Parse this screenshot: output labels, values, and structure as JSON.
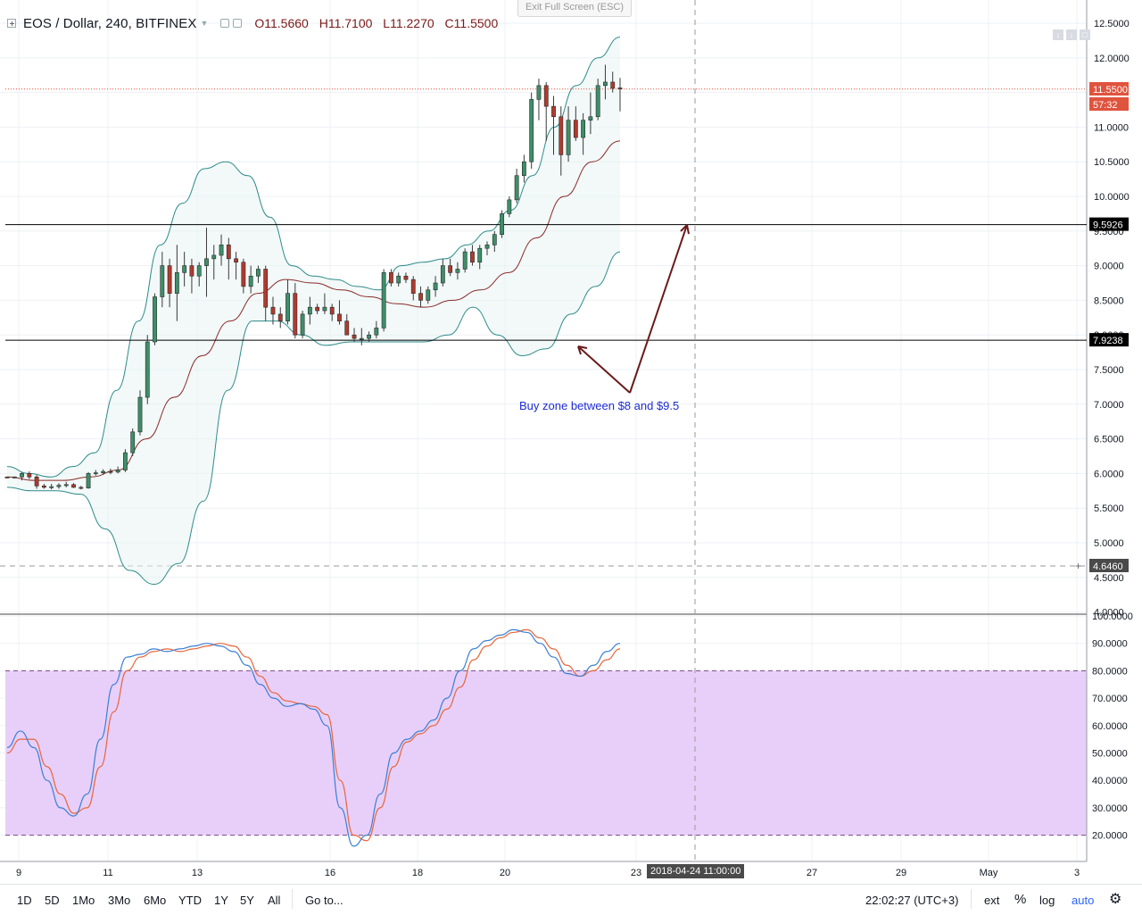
{
  "exit_fullscreen_label": "Exit Full Screen (ESC)",
  "header": {
    "symbol": "EOS / Dollar, 240, BITFINEX",
    "open": "O11.5660",
    "high": "H11.7100",
    "low": "L11.2270",
    "close": "C11.5500"
  },
  "annotation": "Buy zone between $8 and $9.5",
  "price_axis_ticks": [
    "12.5000",
    "12.0000",
    "11.0000",
    "10.5000",
    "10.0000",
    "9.5000",
    "9.0000",
    "8.5000",
    "8.0000",
    "7.5000",
    "7.0000",
    "6.5000",
    "6.0000",
    "5.5000",
    "5.0000",
    "4.5000",
    "4.0000"
  ],
  "stoch_axis_ticks": [
    "100.0000",
    "90.0000",
    "80.0000",
    "70.0000",
    "60.0000",
    "50.0000",
    "40.0000",
    "30.0000",
    "20.0000"
  ],
  "price_labels": {
    "last_price": "11.5500",
    "countdown": "57:32",
    "resistance": "9.5926",
    "support": "7.9238",
    "crosshair": "4.6460"
  },
  "time_axis_ticks": [
    "9",
    "11",
    "13",
    "16",
    "18",
    "20",
    "23",
    "27",
    "29",
    "May",
    "3"
  ],
  "date_badge": "2018-04-24 11:00:00",
  "timeframes": [
    "1D",
    "5D",
    "1Mo",
    "3Mo",
    "6Mo",
    "YTD",
    "1Y",
    "5Y",
    "All"
  ],
  "goto_label": "Go to...",
  "clock": "22:02:27 (UTC+3)",
  "bottom_right": {
    "ext": "ext",
    "percent": "%",
    "log": "log",
    "auto": "auto"
  },
  "colors": {
    "up_candle": "#3d8f6a",
    "down_candle": "#b03a2e",
    "bollinger_band": "#2e8b8b",
    "bollinger_mid": "#8b2a2a",
    "stoch_k": "#3a7fd5",
    "stoch_d": "#e8653a",
    "stoch_zone": "#e6ccfa",
    "last_price_bg": "#e0533d",
    "annotation": "#1d2bd6",
    "arrow": "#6a1a1a"
  },
  "chart_data": {
    "type": "candlestick",
    "title": "EOS / Dollar, 240, BITFINEX",
    "price_range": [
      4.0,
      12.6
    ],
    "candles": [
      [
        5.95,
        5.95,
        5.94,
        5.94
      ],
      [
        5.94,
        5.96,
        5.93,
        5.95
      ],
      [
        5.95,
        6.02,
        5.9,
        6.0
      ],
      [
        6.0,
        6.03,
        5.92,
        5.95
      ],
      [
        5.95,
        5.98,
        5.78,
        5.82
      ],
      [
        5.82,
        5.85,
        5.78,
        5.8
      ],
      [
        5.8,
        5.85,
        5.77,
        5.81
      ],
      [
        5.81,
        5.86,
        5.78,
        5.83
      ],
      [
        5.83,
        5.88,
        5.8,
        5.84
      ],
      [
        5.84,
        5.86,
        5.79,
        5.8
      ],
      [
        5.8,
        5.82,
        5.77,
        5.79
      ],
      [
        5.79,
        6.02,
        5.78,
        6.0
      ],
      [
        6.0,
        6.05,
        5.97,
        6.01
      ],
      [
        6.01,
        6.06,
        5.98,
        6.03
      ],
      [
        6.03,
        6.07,
        5.99,
        6.02
      ],
      [
        6.02,
        6.1,
        6.0,
        6.05
      ],
      [
        6.05,
        6.35,
        6.02,
        6.3
      ],
      [
        6.3,
        6.65,
        6.25,
        6.6
      ],
      [
        6.6,
        7.2,
        6.55,
        7.1
      ],
      [
        7.1,
        8.0,
        7.0,
        7.9
      ],
      [
        7.9,
        8.6,
        7.85,
        8.55
      ],
      [
        8.55,
        9.2,
        8.4,
        9.0
      ],
      [
        9.0,
        9.1,
        8.4,
        8.6
      ],
      [
        8.6,
        9.3,
        8.2,
        8.9
      ],
      [
        8.9,
        9.2,
        8.7,
        9.0
      ],
      [
        9.0,
        9.1,
        8.6,
        8.85
      ],
      [
        8.85,
        9.05,
        8.7,
        9.0
      ],
      [
        9.0,
        9.55,
        8.55,
        9.1
      ],
      [
        9.1,
        9.3,
        8.8,
        9.15
      ],
      [
        9.15,
        9.45,
        9.0,
        9.3
      ],
      [
        9.3,
        9.4,
        8.8,
        9.1
      ],
      [
        9.1,
        9.2,
        8.8,
        9.05
      ],
      [
        9.05,
        9.1,
        8.6,
        8.7
      ],
      [
        8.7,
        9.0,
        8.6,
        8.85
      ],
      [
        8.85,
        9.0,
        8.75,
        8.95
      ],
      [
        8.95,
        9.0,
        8.2,
        8.4
      ],
      [
        8.4,
        8.55,
        8.15,
        8.3
      ],
      [
        8.3,
        8.4,
        8.1,
        8.2
      ],
      [
        8.2,
        8.8,
        8.15,
        8.6
      ],
      [
        8.6,
        8.75,
        7.95,
        8.0
      ],
      [
        8.0,
        8.35,
        7.95,
        8.3
      ],
      [
        8.3,
        8.55,
        8.15,
        8.4
      ],
      [
        8.4,
        8.45,
        8.3,
        8.35
      ],
      [
        8.35,
        8.6,
        8.3,
        8.4
      ],
      [
        8.4,
        8.45,
        8.2,
        8.3
      ],
      [
        8.3,
        8.5,
        8.15,
        8.2
      ],
      [
        8.2,
        8.3,
        8.0,
        8.0
      ],
      [
        8.0,
        8.1,
        7.9,
        7.95
      ],
      [
        7.95,
        8.1,
        7.85,
        7.95
      ],
      [
        7.95,
        8.05,
        7.9,
        8.0
      ],
      [
        8.0,
        8.2,
        7.95,
        8.1
      ],
      [
        8.1,
        8.95,
        8.05,
        8.9
      ],
      [
        8.9,
        8.95,
        8.7,
        8.75
      ],
      [
        8.75,
        8.9,
        8.7,
        8.85
      ],
      [
        8.85,
        8.9,
        8.75,
        8.8
      ],
      [
        8.8,
        8.85,
        8.5,
        8.6
      ],
      [
        8.6,
        8.7,
        8.4,
        8.5
      ],
      [
        8.5,
        8.7,
        8.45,
        8.65
      ],
      [
        8.65,
        8.85,
        8.55,
        8.75
      ],
      [
        8.75,
        9.1,
        8.7,
        9.0
      ],
      [
        9.0,
        9.1,
        8.85,
        8.9
      ],
      [
        8.9,
        9.05,
        8.8,
        8.95
      ],
      [
        8.95,
        9.25,
        8.9,
        9.2
      ],
      [
        9.2,
        9.3,
        9.0,
        9.05
      ],
      [
        9.05,
        9.3,
        8.95,
        9.25
      ],
      [
        9.25,
        9.35,
        9.15,
        9.3
      ],
      [
        9.3,
        9.5,
        9.2,
        9.45
      ],
      [
        9.45,
        9.8,
        9.4,
        9.75
      ],
      [
        9.75,
        10.0,
        9.7,
        9.95
      ],
      [
        9.95,
        10.4,
        9.9,
        10.3
      ],
      [
        10.3,
        10.6,
        10.2,
        10.5
      ],
      [
        10.5,
        11.5,
        10.4,
        11.4
      ],
      [
        11.4,
        11.7,
        11.1,
        11.6
      ],
      [
        11.6,
        11.65,
        10.8,
        11.3
      ],
      [
        11.3,
        11.45,
        10.6,
        11.15
      ],
      [
        11.15,
        11.3,
        10.3,
        10.6
      ],
      [
        10.6,
        11.3,
        10.5,
        11.1
      ],
      [
        11.1,
        11.3,
        10.8,
        10.85
      ],
      [
        10.85,
        11.2,
        10.6,
        11.1
      ],
      [
        11.1,
        11.5,
        10.9,
        11.15
      ],
      [
        11.15,
        11.7,
        11.1,
        11.6
      ],
      [
        11.6,
        11.9,
        11.4,
        11.65
      ],
      [
        11.65,
        11.8,
        11.5,
        11.56
      ],
      [
        11.566,
        11.71,
        11.227,
        11.55
      ]
    ],
    "bollinger": {
      "upper_approx": [
        6.1,
        6.0,
        5.95,
        6.1,
        6.3,
        7.2,
        8.2,
        9.3,
        9.9,
        10.4,
        10.5,
        10.3,
        9.7,
        9.0,
        8.85,
        8.8,
        8.7,
        8.65,
        9.0,
        9.05,
        9.1,
        9.3,
        9.5,
        9.8,
        10.3,
        11.0,
        11.6,
        12.0,
        12.3
      ],
      "lower_approx": [
        5.8,
        5.75,
        5.75,
        5.7,
        5.2,
        4.6,
        4.4,
        4.7,
        5.6,
        7.2,
        8.2,
        8.2,
        8.0,
        7.85,
        7.9,
        7.9,
        7.9,
        7.9,
        8.0,
        8.4,
        8.0,
        7.7,
        7.8,
        8.3,
        8.7,
        9.2
      ],
      "middle_approx": [
        5.95,
        5.9,
        5.9,
        5.95,
        6.05,
        6.5,
        7.1,
        7.7,
        8.2,
        8.6,
        8.8,
        8.75,
        8.65,
        8.55,
        8.45,
        8.4,
        8.5,
        8.65,
        8.9,
        9.4,
        10.0,
        10.5,
        10.8
      ]
    },
    "horizontal_lines": [
      9.5926,
      7.9238
    ],
    "stochastic": {
      "overbought": 80,
      "oversold": 20,
      "k": [
        52,
        58,
        52,
        40,
        30,
        27,
        35,
        55,
        75,
        85,
        86,
        88,
        87,
        88,
        89,
        90,
        89,
        87,
        82,
        75,
        70,
        67,
        68,
        66,
        60,
        30,
        16,
        20,
        35,
        50,
        55,
        58,
        62,
        70,
        80,
        88,
        91,
        93,
        95,
        94,
        90,
        85,
        79,
        78,
        82,
        87,
        90
      ],
      "d": [
        50,
        55,
        55,
        45,
        35,
        28,
        30,
        45,
        65,
        80,
        85,
        87,
        88,
        87,
        88,
        89,
        90,
        89,
        85,
        78,
        72,
        69,
        68,
        67,
        64,
        40,
        20,
        18,
        30,
        45,
        54,
        57,
        60,
        66,
        74,
        84,
        89,
        92,
        94,
        95,
        92,
        88,
        82,
        78,
        80,
        84,
        88
      ]
    }
  }
}
